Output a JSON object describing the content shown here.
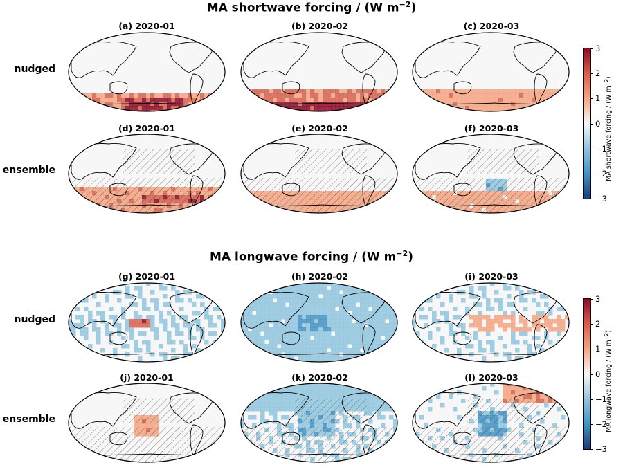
{
  "sections": [
    {
      "title": "MA shortwave forcing / (W m",
      "title_sup": "−2",
      "title_close": ")",
      "rows": [
        {
          "label": "nudged",
          "panels": [
            {
              "title": "(a) 2020-01",
              "pattern": "sw_nudged_jan",
              "hatched": false
            },
            {
              "title": "(b) 2020-02",
              "pattern": "sw_nudged_feb",
              "hatched": false
            },
            {
              "title": "(c) 2020-03",
              "pattern": "sw_nudged_mar",
              "hatched": false
            }
          ]
        },
        {
          "label": "ensemble",
          "panels": [
            {
              "title": "(d) 2020-01",
              "pattern": "sw_ens_jan",
              "hatched": true
            },
            {
              "title": "(e) 2020-02",
              "pattern": "sw_ens_feb",
              "hatched": true
            },
            {
              "title": "(f) 2020-03",
              "pattern": "sw_ens_mar",
              "hatched": true
            }
          ]
        }
      ],
      "colorbar": {
        "label": "MA shortwave forcing / (W m",
        "label_sup": "−2",
        "label_close": ")",
        "ticks": [
          "3",
          "2",
          "1",
          "0",
          "−1",
          "−2",
          "−3"
        ],
        "range": [
          -3,
          3
        ],
        "colormap": "RdBu_r"
      }
    },
    {
      "title": "MA longwave forcing / (W m",
      "title_sup": "−2",
      "title_close": ")",
      "rows": [
        {
          "label": "nudged",
          "panels": [
            {
              "title": "(g) 2020-01",
              "pattern": "lw_nudged_jan",
              "hatched": false
            },
            {
              "title": "(h) 2020-02",
              "pattern": "lw_nudged_feb",
              "hatched": false
            },
            {
              "title": "(i) 2020-03",
              "pattern": "lw_nudged_mar",
              "hatched": false
            }
          ]
        },
        {
          "label": "ensemble",
          "panels": [
            {
              "title": "(j) 2020-01",
              "pattern": "lw_ens_jan",
              "hatched": true
            },
            {
              "title": "(k) 2020-02",
              "pattern": "lw_ens_feb",
              "hatched": true
            },
            {
              "title": "(l) 2020-03",
              "pattern": "lw_ens_mar",
              "hatched": true
            }
          ]
        }
      ],
      "colorbar": {
        "label": "MA longwave forcing / (W m",
        "label_sup": "−2",
        "label_close": ")",
        "ticks": [
          "3",
          "2",
          "1",
          "0",
          "−1",
          "−2",
          "−3"
        ],
        "range": [
          -3,
          3
        ],
        "colormap": "RdBu_r"
      }
    }
  ],
  "colors": {
    "dark_red": "#8b0a26",
    "red": "#d6604d",
    "light_red": "#f4a582",
    "white": "#f7f7f7",
    "light_blue": "#92c5de",
    "blue": "#4393c3",
    "dark_blue": "#1a3d7c"
  }
}
